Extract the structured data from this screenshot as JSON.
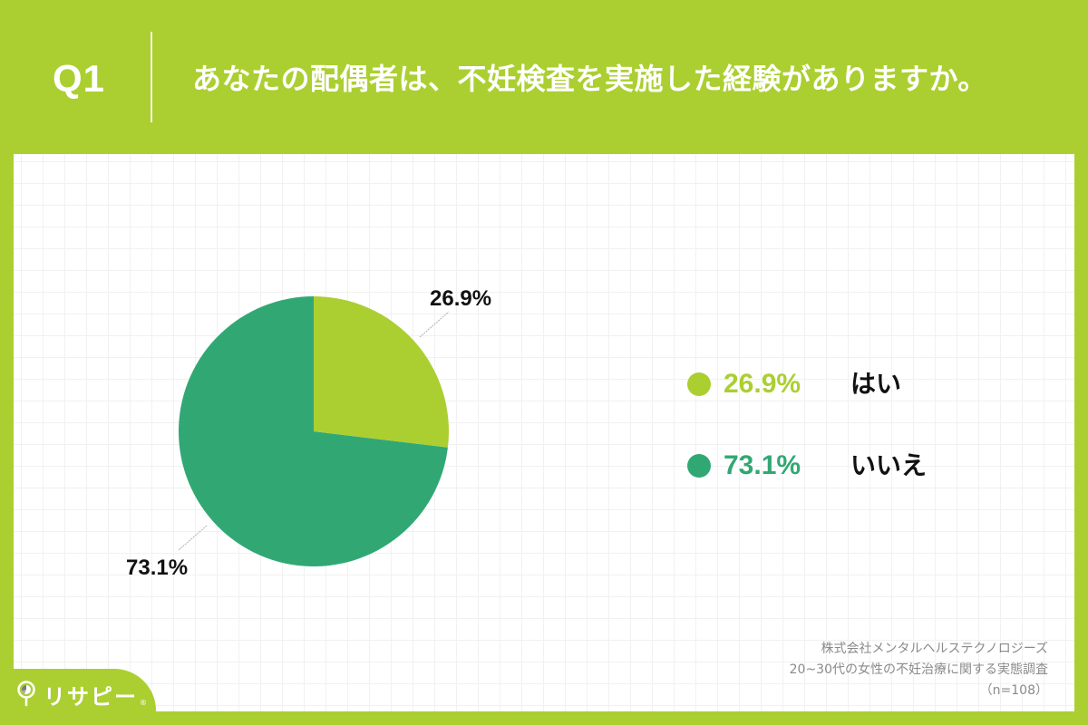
{
  "header": {
    "question_number": "Q1",
    "question_text": "あなたの配偶者は、不妊検査を実施した経験がありますか。"
  },
  "colors": {
    "background": "#abcf31",
    "yes": "#abcf31",
    "no": "#31a874",
    "label_text": "#111111",
    "source_text": "#8a8a8a"
  },
  "chart_data": {
    "type": "pie",
    "title": "あなたの配偶者は、不妊検査を実施した経験がありますか。",
    "categories": [
      "はい",
      "いいえ"
    ],
    "values": [
      26.9,
      73.1
    ],
    "unit": "%",
    "colors": [
      "#abcf31",
      "#31a874"
    ],
    "start_angle": "12 o'clock, clockwise",
    "data_labels": [
      "26.9%",
      "73.1%"
    ],
    "legend_position": "right",
    "n": 108
  },
  "pie_labels": {
    "yes": "26.9%",
    "no": "73.1%"
  },
  "legend": {
    "items": [
      {
        "pct": "26.9%",
        "label": "はい"
      },
      {
        "pct": "73.1%",
        "label": "いいえ"
      }
    ]
  },
  "source": {
    "company": "株式会社メンタルヘルステクノロジーズ",
    "survey": "20~30代の女性の不妊治療に関する実態調査",
    "sample": "（n=108）"
  },
  "logo": {
    "name": "リサピー",
    "mark": "®"
  }
}
